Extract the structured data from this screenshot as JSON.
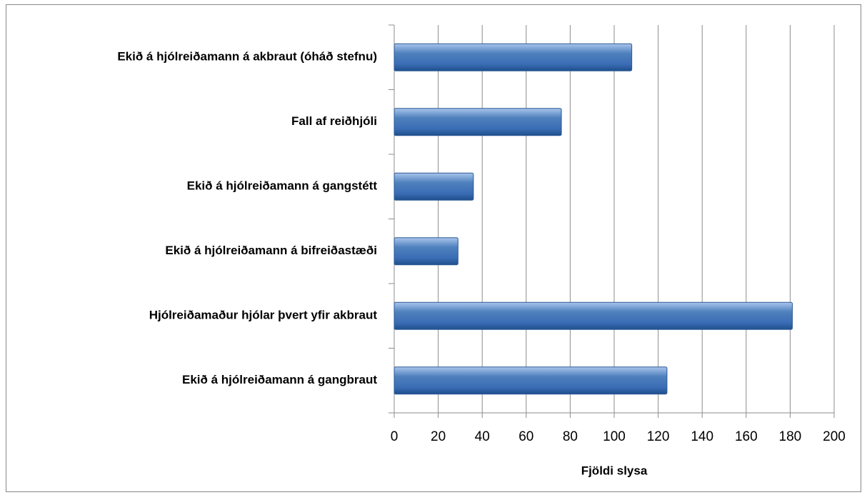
{
  "chart_data": {
    "type": "bar",
    "orientation": "horizontal",
    "categories": [
      "Ekið á hjólreiðamann á akbraut (óháð stefnu)",
      "Fall af reiðhjóli",
      "Ekið á hjólreiðamann á gangstétt",
      "Ekið á hjólreiðamann á bifreiðastæði",
      "Hjólreiðamaður hjólar þvert yfir akbraut",
      "Ekið á hjólreiðamann á gangbraut"
    ],
    "values": [
      108,
      76,
      36,
      29,
      181,
      124
    ],
    "color": "#4f81bd",
    "xlabel": "Fjöldi slysa",
    "xlim": [
      0,
      200
    ],
    "xticks": [
      0,
      20,
      40,
      60,
      80,
      100,
      120,
      140,
      160,
      180,
      200
    ],
    "grid": true
  }
}
